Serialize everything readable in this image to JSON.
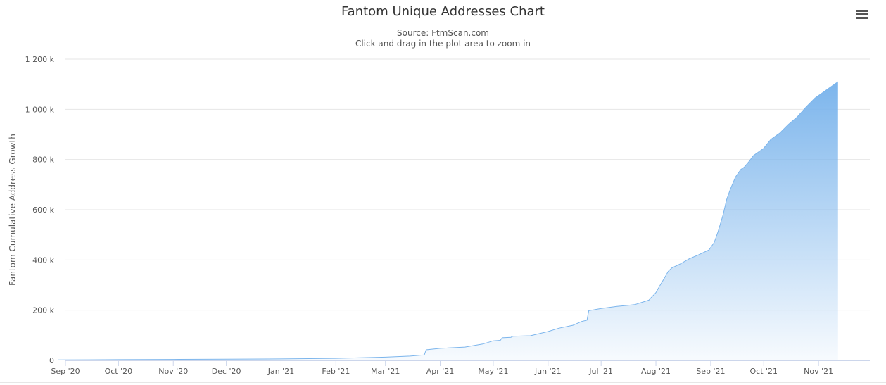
{
  "chart_data": {
    "type": "area",
    "title": "Fantom Unique Addresses Chart",
    "subtitle": "Source: FtmScan.com",
    "zoom_hint": "Click and drag in the plot area to zoom in",
    "xlabel": "",
    "ylabel": "Fantom Cumulative Address Growth",
    "xlim": [
      "2020-09-01",
      "2021-11-30"
    ],
    "ylim": [
      0,
      1200000
    ],
    "y_ticks": [
      {
        "value": 0,
        "label": "0"
      },
      {
        "value": 200000,
        "label": "200 k"
      },
      {
        "value": 400000,
        "label": "400 k"
      },
      {
        "value": 600000,
        "label": "600 k"
      },
      {
        "value": 800000,
        "label": "800 k"
      },
      {
        "value": 1000000,
        "label": "1 000 k"
      },
      {
        "value": 1200000,
        "label": "1 200 k"
      }
    ],
    "x_ticks": [
      {
        "date": "2020-09-01",
        "label": "Sep '20"
      },
      {
        "date": "2020-10-01",
        "label": "Oct '20"
      },
      {
        "date": "2020-11-01",
        "label": "Nov '20"
      },
      {
        "date": "2020-12-01",
        "label": "Dec '20"
      },
      {
        "date": "2021-01-01",
        "label": "Jan '21"
      },
      {
        "date": "2021-02-01",
        "label": "Feb '21"
      },
      {
        "date": "2021-03-01",
        "label": "Mar '21"
      },
      {
        "date": "2021-04-01",
        "label": "Apr '21"
      },
      {
        "date": "2021-05-01",
        "label": "May '21"
      },
      {
        "date": "2021-06-01",
        "label": "Jun '21"
      },
      {
        "date": "2021-07-01",
        "label": "Jul '21"
      },
      {
        "date": "2021-08-01",
        "label": "Aug '21"
      },
      {
        "date": "2021-09-01",
        "label": "Sep '21"
      },
      {
        "date": "2021-10-01",
        "label": "Oct '21"
      },
      {
        "date": "2021-11-01",
        "label": "Nov '21"
      }
    ],
    "grid": true,
    "legend": false,
    "colors": {
      "line": "#7cb5ec",
      "fill_top": "#7cb5ec",
      "grid": "#e6e6e6",
      "axis": "#ccd6eb"
    },
    "series": [
      {
        "x": [
          "2020-08-28",
          "2020-10-01",
          "2020-11-01",
          "2020-12-01",
          "2021-01-01",
          "2021-02-01",
          "2021-03-01",
          "2021-03-15",
          "2021-03-23",
          "2021-03-24",
          "2021-04-01",
          "2021-04-15",
          "2021-04-25",
          "2021-05-01",
          "2021-05-05",
          "2021-05-06",
          "2021-05-11",
          "2021-05-12",
          "2021-05-22",
          "2021-06-01",
          "2021-06-07",
          "2021-06-15",
          "2021-06-20",
          "2021-06-23",
          "2021-06-24",
          "2021-07-01",
          "2021-07-10",
          "2021-07-20",
          "2021-07-28",
          "2021-08-01",
          "2021-08-03",
          "2021-08-06",
          "2021-08-08",
          "2021-08-10",
          "2021-08-15",
          "2021-08-20",
          "2021-08-25",
          "2021-08-31",
          "2021-09-03",
          "2021-09-05",
          "2021-09-08",
          "2021-09-10",
          "2021-09-12",
          "2021-09-15",
          "2021-09-18",
          "2021-09-20",
          "2021-09-23",
          "2021-09-25",
          "2021-10-01",
          "2021-10-05",
          "2021-10-10",
          "2021-10-15",
          "2021-10-20",
          "2021-10-25",
          "2021-10-30",
          "2021-11-03",
          "2021-11-07",
          "2021-11-12"
        ],
        "y": [
          2000,
          3000,
          4000,
          5000,
          6000,
          8000,
          13000,
          17000,
          22000,
          42000,
          48000,
          53000,
          65000,
          78000,
          80000,
          90000,
          92000,
          96000,
          98000,
          115000,
          128000,
          140000,
          155000,
          160000,
          198000,
          207000,
          215000,
          222000,
          240000,
          270000,
          295000,
          330000,
          355000,
          368000,
          385000,
          405000,
          420000,
          440000,
          470000,
          510000,
          580000,
          640000,
          680000,
          730000,
          760000,
          770000,
          795000,
          815000,
          845000,
          880000,
          905000,
          940000,
          970000,
          1010000,
          1045000,
          1065000,
          1085000,
          1110000
        ]
      }
    ]
  }
}
